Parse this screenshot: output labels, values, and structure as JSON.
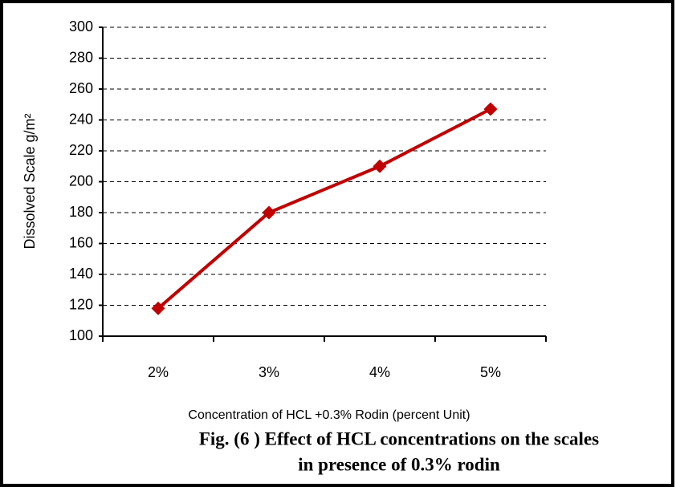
{
  "chart_data": {
    "type": "line",
    "y_label": "Dissolved Scale g/m²",
    "x_label": "Concentration of HCL +0.3% Rodin (percent Unit)",
    "caption": [
      "Fig. (6 ) Effect of HCL concentrations on the scales",
      "in presence of 0.3% rodin"
    ],
    "categories": [
      "2%",
      "3%",
      "4%",
      "5%"
    ],
    "series": [
      {
        "name": "Dissolved Scale",
        "color": "#c00000",
        "values": [
          118,
          180,
          210,
          247
        ]
      }
    ],
    "ylim": [
      100,
      300
    ],
    "yticks": [
      100,
      120,
      140,
      160,
      180,
      200,
      220,
      240,
      260,
      280,
      300
    ],
    "grid": true
  }
}
